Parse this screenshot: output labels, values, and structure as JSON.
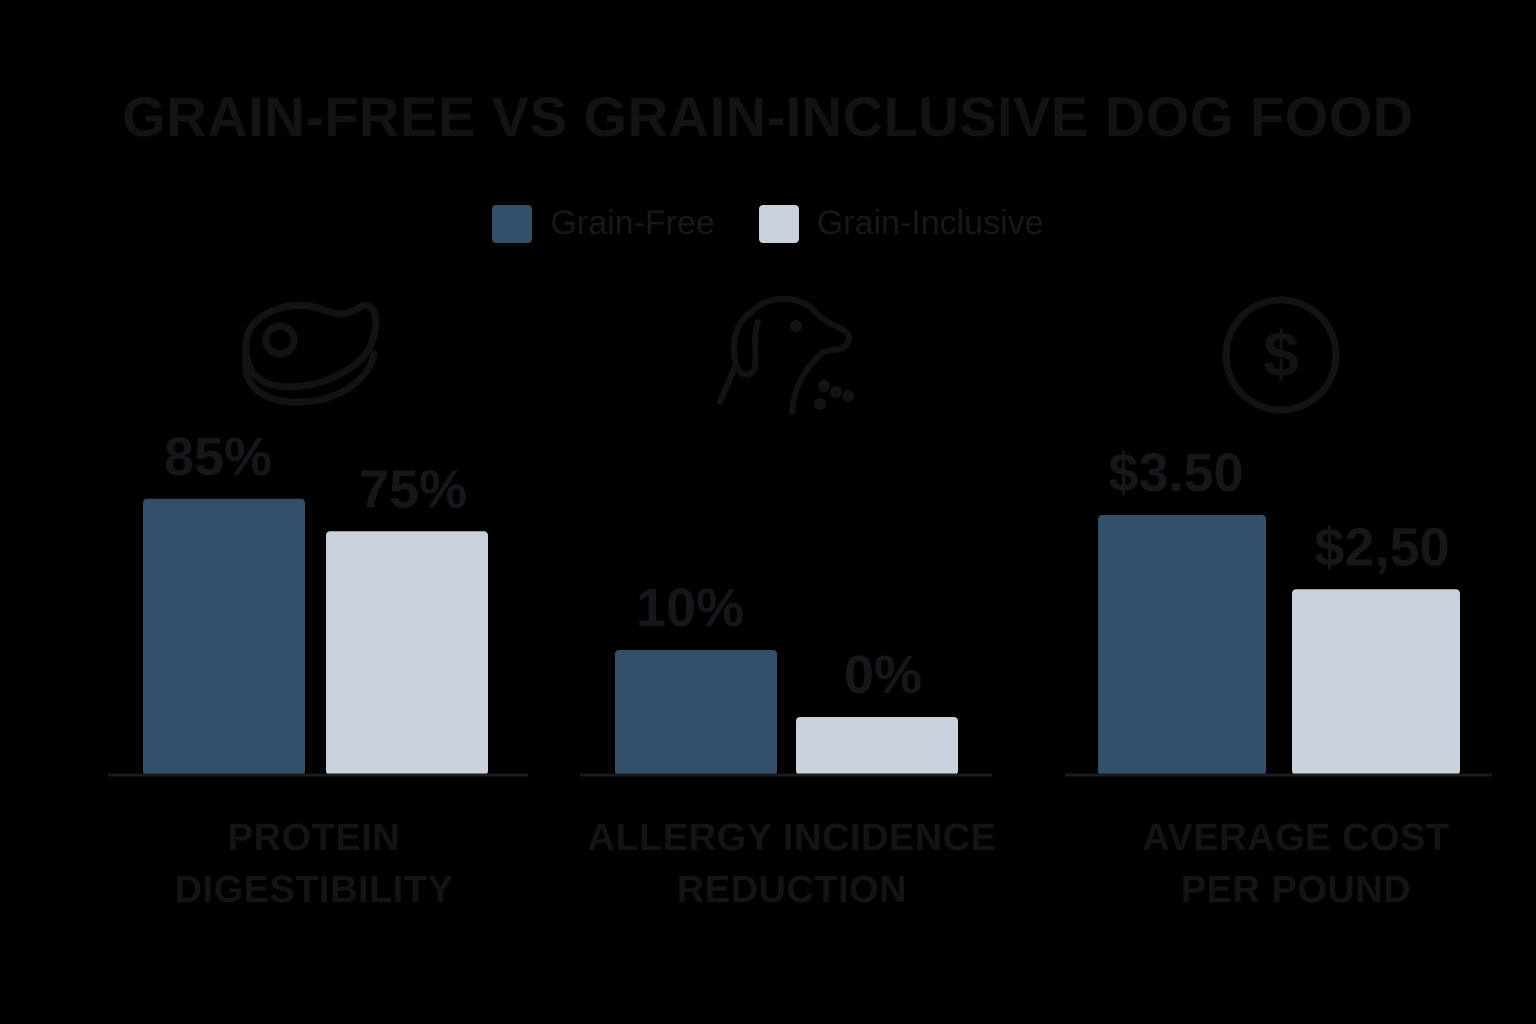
{
  "chart_data": {
    "type": "bar",
    "title": "GRAIN-FREE VS GRAIN-INCLUSIVE DOG FOOD",
    "legend_position": "top-center",
    "series_meta": [
      {
        "name": "Grain-Free",
        "color": "#335068"
      },
      {
        "name": "Grain-Inclusive",
        "color": "#c8d1dc"
      }
    ],
    "panels": [
      {
        "category_lines": [
          "PROTEIN",
          "DIGESTIBILITY"
        ],
        "icon": "steak-icon",
        "values": [
          85,
          75
        ],
        "labels": [
          "85%",
          "75%"
        ],
        "ylim": [
          0,
          100
        ]
      },
      {
        "category_lines": [
          "ALLERGY INCIDENCE",
          "REDUCTION"
        ],
        "icon": "dog-icon",
        "values": [
          10,
          0
        ],
        "labels": [
          "10%",
          "0%"
        ],
        "ylim": [
          0,
          100
        ]
      },
      {
        "category_lines": [
          "AVERAGE COST",
          "PER POUND"
        ],
        "icon": "dollar-icon",
        "values": [
          3.5,
          2.5
        ],
        "labels": [
          "$3.50",
          "$2,50"
        ],
        "ylim": [
          0,
          4.5
        ]
      }
    ]
  }
}
